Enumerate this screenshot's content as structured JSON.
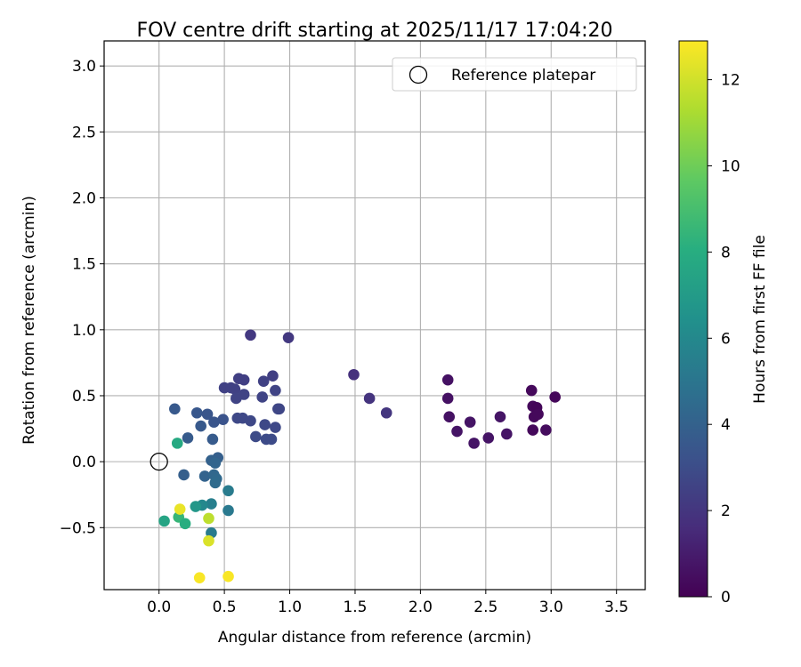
{
  "chart_data": {
    "type": "scatter",
    "title": "FOV centre drift starting at 2025/11/17 17:04:20",
    "xlabel": "Angular distance from reference (arcmin)",
    "ylabel": "Rotation from reference (arcmin)",
    "xlim": [
      -0.42,
      3.72
    ],
    "ylim": [
      -0.97,
      3.19
    ],
    "xticks": [
      "0.0",
      "0.5",
      "1.0",
      "1.5",
      "2.0",
      "2.5",
      "3.0",
      "3.5"
    ],
    "yticks": [
      "−0.5",
      "0.0",
      "0.5",
      "1.0",
      "1.5",
      "2.0",
      "2.5",
      "3.0"
    ],
    "grid": true,
    "legend": {
      "position": "top-right",
      "entries": [
        "Reference platepar"
      ]
    },
    "reference_point": {
      "x": 0.0,
      "y": 0.0,
      "marker": "open-circle"
    },
    "colorbar": {
      "label": "Hours from first FF file",
      "colormap": "viridis",
      "range": [
        0,
        12.9
      ],
      "ticks": [
        "0",
        "2",
        "4",
        "6",
        "8",
        "10",
        "12"
      ]
    },
    "points": [
      {
        "x": 3.03,
        "y": 0.49,
        "c": 0.2
      },
      {
        "x": 2.85,
        "y": 0.54,
        "c": 0.3
      },
      {
        "x": 2.86,
        "y": 0.42,
        "c": 0.3
      },
      {
        "x": 2.89,
        "y": 0.41,
        "c": 0.2
      },
      {
        "x": 2.87,
        "y": 0.34,
        "c": 0.3
      },
      {
        "x": 2.9,
        "y": 0.36,
        "c": 0.3
      },
      {
        "x": 2.86,
        "y": 0.24,
        "c": 0.3
      },
      {
        "x": 2.96,
        "y": 0.24,
        "c": 0.4
      },
      {
        "x": 2.21,
        "y": 0.62,
        "c": 0.6
      },
      {
        "x": 2.21,
        "y": 0.48,
        "c": 0.6
      },
      {
        "x": 2.22,
        "y": 0.34,
        "c": 0.6
      },
      {
        "x": 2.28,
        "y": 0.23,
        "c": 0.7
      },
      {
        "x": 2.38,
        "y": 0.3,
        "c": 0.7
      },
      {
        "x": 2.41,
        "y": 0.14,
        "c": 0.7
      },
      {
        "x": 2.52,
        "y": 0.18,
        "c": 0.7
      },
      {
        "x": 2.61,
        "y": 0.34,
        "c": 0.7
      },
      {
        "x": 2.66,
        "y": 0.21,
        "c": 0.7
      },
      {
        "x": 1.49,
        "y": 0.66,
        "c": 1.8
      },
      {
        "x": 1.61,
        "y": 0.48,
        "c": 1.9
      },
      {
        "x": 1.74,
        "y": 0.37,
        "c": 2.0
      },
      {
        "x": 0.7,
        "y": 0.96,
        "c": 2.1
      },
      {
        "x": 0.99,
        "y": 0.94,
        "c": 2.1
      },
      {
        "x": 0.87,
        "y": 0.65,
        "c": 2.4
      },
      {
        "x": 0.61,
        "y": 0.63,
        "c": 2.4
      },
      {
        "x": 0.65,
        "y": 0.62,
        "c": 2.4
      },
      {
        "x": 0.8,
        "y": 0.61,
        "c": 2.5
      },
      {
        "x": 0.5,
        "y": 0.56,
        "c": 2.5
      },
      {
        "x": 0.55,
        "y": 0.56,
        "c": 2.5
      },
      {
        "x": 0.58,
        "y": 0.55,
        "c": 2.5
      },
      {
        "x": 0.89,
        "y": 0.54,
        "c": 2.6
      },
      {
        "x": 0.65,
        "y": 0.51,
        "c": 2.6
      },
      {
        "x": 0.59,
        "y": 0.48,
        "c": 2.6
      },
      {
        "x": 0.79,
        "y": 0.49,
        "c": 2.6
      },
      {
        "x": 0.91,
        "y": 0.4,
        "c": 2.7
      },
      {
        "x": 0.92,
        "y": 0.4,
        "c": 2.7
      },
      {
        "x": 0.6,
        "y": 0.33,
        "c": 2.8
      },
      {
        "x": 0.64,
        "y": 0.33,
        "c": 2.8
      },
      {
        "x": 0.7,
        "y": 0.31,
        "c": 2.8
      },
      {
        "x": 0.81,
        "y": 0.28,
        "c": 2.8
      },
      {
        "x": 0.89,
        "y": 0.26,
        "c": 2.8
      },
      {
        "x": 0.74,
        "y": 0.19,
        "c": 2.9
      },
      {
        "x": 0.82,
        "y": 0.17,
        "c": 2.9
      },
      {
        "x": 0.86,
        "y": 0.17,
        "c": 2.9
      },
      {
        "x": 0.12,
        "y": 0.4,
        "c": 3.6
      },
      {
        "x": 0.29,
        "y": 0.37,
        "c": 3.5
      },
      {
        "x": 0.37,
        "y": 0.36,
        "c": 3.4
      },
      {
        "x": 0.49,
        "y": 0.32,
        "c": 3.3
      },
      {
        "x": 0.42,
        "y": 0.3,
        "c": 3.4
      },
      {
        "x": 0.32,
        "y": 0.27,
        "c": 3.6
      },
      {
        "x": 0.22,
        "y": 0.18,
        "c": 3.7
      },
      {
        "x": 0.41,
        "y": 0.17,
        "c": 3.7
      },
      {
        "x": 0.45,
        "y": 0.03,
        "c": 3.9
      },
      {
        "x": 0.4,
        "y": 0.01,
        "c": 4.0
      },
      {
        "x": 0.43,
        "y": -0.01,
        "c": 4.2
      },
      {
        "x": 0.19,
        "y": -0.1,
        "c": 3.9
      },
      {
        "x": 0.35,
        "y": -0.11,
        "c": 4.1
      },
      {
        "x": 0.42,
        "y": -0.1,
        "c": 4.3
      },
      {
        "x": 0.44,
        "y": -0.13,
        "c": 4.4
      },
      {
        "x": 0.43,
        "y": -0.16,
        "c": 4.5
      },
      {
        "x": 0.53,
        "y": -0.22,
        "c": 5.3
      },
      {
        "x": 0.53,
        "y": -0.37,
        "c": 5.2
      },
      {
        "x": 0.4,
        "y": -0.32,
        "c": 5.5
      },
      {
        "x": 0.33,
        "y": -0.33,
        "c": 6.0
      },
      {
        "x": 0.28,
        "y": -0.34,
        "c": 6.8
      },
      {
        "x": 0.4,
        "y": -0.54,
        "c": 5.3
      },
      {
        "x": 0.14,
        "y": 0.14,
        "c": 7.8
      },
      {
        "x": 0.04,
        "y": -0.45,
        "c": 7.5
      },
      {
        "x": 0.15,
        "y": -0.42,
        "c": 8.5
      },
      {
        "x": 0.2,
        "y": -0.47,
        "c": 8.0
      },
      {
        "x": 0.16,
        "y": -0.36,
        "c": 12.5
      },
      {
        "x": 0.38,
        "y": -0.43,
        "c": 11.6
      },
      {
        "x": 0.38,
        "y": -0.6,
        "c": 12.2
      },
      {
        "x": 0.31,
        "y": -0.88,
        "c": 12.8
      },
      {
        "x": 0.53,
        "y": -0.87,
        "c": 12.8
      }
    ]
  }
}
